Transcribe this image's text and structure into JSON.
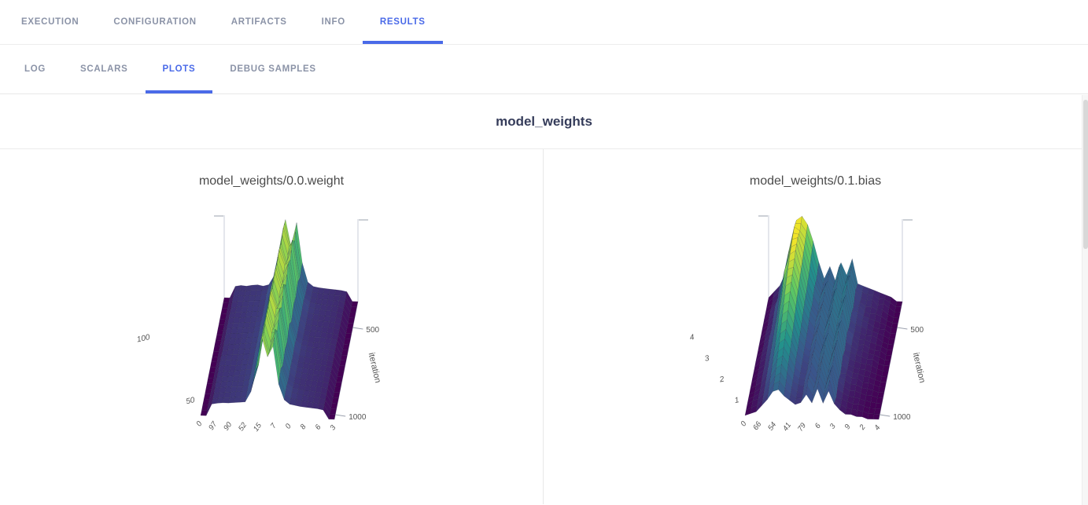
{
  "main_tabs": {
    "items": [
      {
        "label": "EXECUTION",
        "active": false
      },
      {
        "label": "CONFIGURATION",
        "active": false
      },
      {
        "label": "ARTIFACTS",
        "active": false
      },
      {
        "label": "INFO",
        "active": false
      },
      {
        "label": "RESULTS",
        "active": true
      }
    ]
  },
  "sub_tabs": {
    "items": [
      {
        "label": "LOG",
        "active": false
      },
      {
        "label": "SCALARS",
        "active": false
      },
      {
        "label": "PLOTS",
        "active": true
      },
      {
        "label": "DEBUG SAMPLES",
        "active": false
      }
    ]
  },
  "section_title": "model_weights",
  "colors": {
    "accent_blue": "#4a6ae8",
    "inactive_tab_gray": "#8b93a7",
    "section_title_color": "#353c5a",
    "plot_title_color": "#4a4a4a",
    "viridis_low": "#440154",
    "viridis_mid": "#21918c",
    "viridis_high": "#fde725"
  },
  "chart_data": [
    {
      "type": "surface",
      "title": "model_weights/0.0.weight",
      "depth_label": "iteration",
      "depth_ticks": [
        {
          "label": "500",
          "pos": 0.22
        },
        {
          "label": "1000",
          "pos": 0.96
        }
      ],
      "z_tick_labels": [
        "50",
        "100"
      ],
      "x_tick_labels": [
        "0",
        "97",
        "90",
        "52",
        "15",
        "7",
        "0",
        "8",
        "6",
        "3"
      ],
      "zmax": 155,
      "slices": [
        [
          0,
          0,
          22,
          24,
          23,
          25,
          26,
          24,
          27,
          45,
          85,
          150,
          100,
          145,
          70,
          34,
          26,
          24,
          23,
          22,
          21,
          20,
          18,
          0,
          0
        ],
        [
          0,
          0,
          23,
          25,
          24,
          26,
          25,
          27,
          30,
          50,
          100,
          155,
          120,
          130,
          62,
          32,
          25,
          23,
          22,
          23,
          20,
          21,
          17,
          0,
          0
        ],
        [
          0,
          0,
          21,
          23,
          25,
          25,
          27,
          26,
          29,
          43,
          78,
          145,
          108,
          152,
          75,
          38,
          28,
          25,
          24,
          21,
          22,
          19,
          16,
          0,
          0
        ],
        [
          0,
          0,
          22,
          24,
          23,
          25,
          26,
          27,
          28,
          48,
          95,
          153,
          125,
          135,
          66,
          35,
          26,
          24,
          22,
          22,
          21,
          20,
          17,
          0,
          0
        ],
        [
          0,
          0,
          23,
          24,
          25,
          26,
          25,
          27,
          31,
          46,
          82,
          148,
          112,
          148,
          72,
          37,
          25,
          23,
          23,
          22,
          20,
          19,
          16,
          0,
          0
        ],
        [
          0,
          0,
          22,
          25,
          24,
          25,
          27,
          28,
          29,
          52,
          105,
          152,
          122,
          128,
          60,
          33,
          26,
          24,
          21,
          23,
          21,
          20,
          18,
          0,
          0
        ],
        [
          0,
          0,
          21,
          23,
          24,
          26,
          26,
          27,
          30,
          44,
          80,
          142,
          105,
          150,
          76,
          39,
          28,
          26,
          23,
          21,
          22,
          20,
          17,
          0,
          0
        ],
        [
          0,
          0,
          23,
          25,
          25,
          24,
          27,
          26,
          29,
          49,
          98,
          154,
          124,
          126,
          62,
          34,
          25,
          23,
          22,
          22,
          20,
          19,
          16,
          0,
          0
        ],
        [
          0,
          0,
          22,
          24,
          23,
          25,
          26,
          28,
          28,
          45,
          84,
          147,
          110,
          144,
          68,
          36,
          27,
          25,
          23,
          21,
          21,
          20,
          17,
          0,
          0
        ],
        [
          0,
          0,
          23,
          24,
          25,
          26,
          25,
          27,
          30,
          51,
          102,
          151,
          118,
          122,
          58,
          32,
          25,
          23,
          21,
          22,
          20,
          19,
          17,
          0,
          0
        ],
        [
          0,
          0,
          21,
          23,
          24,
          25,
          27,
          26,
          29,
          43,
          78,
          140,
          104,
          146,
          73,
          38,
          28,
          26,
          23,
          22,
          21,
          19,
          16,
          0,
          0
        ],
        [
          0,
          0,
          22,
          24,
          25,
          25,
          26,
          27,
          28,
          47,
          90,
          150,
          114,
          134,
          63,
          34,
          26,
          24,
          22,
          21,
          20,
          19,
          17,
          0,
          0
        ]
      ]
    },
    {
      "type": "surface",
      "title": "model_weights/0.1.bias",
      "depth_label": "iteration",
      "depth_ticks": [
        {
          "label": "500",
          "pos": 0.22
        },
        {
          "label": "1000",
          "pos": 0.96
        }
      ],
      "z_tick_labels": [
        "1",
        "2",
        "3",
        "4"
      ],
      "x_tick_labels": [
        "0",
        "66",
        "54",
        "41",
        "79",
        "6",
        "3",
        "9",
        "2",
        "4"
      ],
      "zmax": 4,
      "slices": [
        [
          0,
          0.3,
          0.6,
          1.2,
          2.5,
          3.8,
          4.0,
          3.6,
          2.8,
          1.8,
          1.0,
          1.6,
          0.9,
          1.8,
          1.2,
          2.0,
          0.8,
          0.7,
          0.6,
          0.5,
          0.4,
          0.3,
          0.2,
          0,
          0
        ],
        [
          0,
          0.2,
          0.5,
          1.5,
          2.8,
          4.0,
          3.8,
          3.4,
          2.5,
          1.5,
          0.9,
          1.4,
          1.1,
          2.1,
          0.9,
          1.7,
          1.0,
          0.6,
          0.5,
          0.6,
          0.3,
          0.4,
          0.2,
          0,
          0
        ],
        [
          0,
          0.3,
          0.7,
          1.3,
          2.6,
          3.9,
          4.0,
          3.2,
          2.2,
          1.6,
          1.1,
          1.8,
          0.8,
          1.6,
          1.3,
          2.2,
          0.7,
          0.8,
          0.5,
          0.4,
          0.4,
          0.3,
          0.1,
          0,
          0
        ],
        [
          0,
          0.2,
          0.6,
          1.4,
          2.9,
          3.7,
          3.9,
          3.0,
          2.0,
          1.3,
          0.9,
          1.5,
          1.0,
          2.0,
          1.0,
          1.8,
          0.9,
          0.7,
          0.6,
          0.5,
          0.3,
          0.2,
          0.2,
          0,
          0
        ],
        [
          0,
          0.3,
          0.5,
          1.2,
          2.4,
          3.5,
          3.6,
          2.8,
          1.9,
          1.4,
          1.0,
          1.7,
          0.9,
          1.7,
          1.2,
          2.1,
          0.8,
          0.6,
          0.5,
          0.4,
          0.4,
          0.3,
          0.1,
          0,
          0
        ],
        [
          0,
          0.2,
          0.6,
          1.1,
          2.2,
          3.2,
          3.4,
          2.6,
          1.7,
          1.2,
          0.8,
          1.4,
          1.1,
          1.9,
          0.9,
          1.6,
          1.0,
          0.7,
          0.4,
          0.5,
          0.3,
          0.2,
          0.2,
          0,
          0
        ],
        [
          0,
          0.3,
          0.5,
          1.0,
          1.9,
          2.8,
          3.0,
          2.3,
          1.5,
          1.1,
          0.9,
          1.6,
          0.8,
          1.5,
          1.1,
          2.0,
          0.7,
          0.6,
          0.5,
          0.4,
          0.3,
          0.3,
          0.1,
          0,
          0
        ],
        [
          0,
          0.2,
          0.4,
          0.9,
          1.6,
          2.4,
          2.6,
          2.0,
          1.3,
          1.0,
          0.8,
          1.3,
          1.0,
          1.8,
          0.9,
          1.7,
          0.9,
          0.5,
          0.4,
          0.3,
          0.3,
          0.2,
          0.1,
          0,
          0
        ],
        [
          0,
          0.2,
          0.4,
          0.8,
          1.4,
          2.0,
          2.2,
          1.7,
          1.2,
          0.9,
          0.7,
          1.5,
          0.9,
          1.6,
          1.0,
          1.9,
          0.6,
          0.6,
          0.4,
          0.4,
          0.2,
          0.2,
          0.1,
          0,
          0
        ],
        [
          0,
          0.1,
          0.3,
          0.7,
          1.2,
          1.7,
          1.9,
          1.5,
          1.0,
          0.8,
          0.8,
          1.2,
          0.8,
          1.7,
          0.8,
          1.5,
          0.8,
          0.5,
          0.3,
          0.3,
          0.2,
          0.1,
          0.1,
          0,
          0
        ],
        [
          0,
          0.2,
          0.3,
          0.6,
          1.0,
          1.4,
          1.6,
          1.2,
          0.9,
          0.7,
          0.6,
          1.4,
          0.9,
          1.5,
          0.9,
          1.8,
          0.5,
          0.4,
          0.3,
          0.2,
          0.2,
          0.1,
          0.0,
          0,
          0
        ],
        [
          0,
          0.1,
          0.2,
          0.5,
          0.8,
          1.2,
          1.3,
          1.0,
          0.8,
          0.6,
          0.7,
          1.1,
          0.7,
          1.4,
          0.7,
          1.3,
          0.7,
          0.4,
          0.2,
          0.2,
          0.1,
          0.1,
          0.0,
          0,
          0
        ]
      ]
    }
  ]
}
